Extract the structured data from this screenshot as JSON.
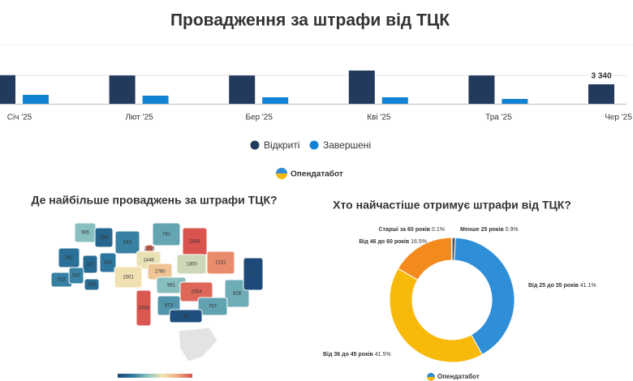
{
  "chart_data": [
    {
      "type": "bar",
      "title": "Провадження за штрафи від ТЦК",
      "categories": [
        "Січ '25",
        "Лют '25",
        "Бер '25",
        "Кві '25",
        "Тра '25",
        "Чер '25"
      ],
      "series": [
        {
          "name": "Відкриті",
          "color": "#223a5e",
          "values": [
            4900,
            4850,
            4850,
            5700,
            4850,
            3340
          ],
          "value_labels": [
            null,
            null,
            null,
            null,
            null,
            "3 340"
          ]
        },
        {
          "name": "Завершені",
          "color": "#1283d4",
          "values": [
            1530,
            1390,
            1110,
            1110,
            830,
            null
          ]
        }
      ],
      "source": "Опендатабот"
    },
    {
      "type": "map",
      "title": "Де найбільше проваджень за штрафи ТЦК?",
      "values": [
        965,
        286,
        543,
        781,
        2464,
        392,
        322,
        454,
        2356,
        1446,
        1760,
        1300,
        2151,
        532,
        547,
        350,
        1501,
        961,
        2354,
        828,
        2,
        2438,
        673,
        767,
        54
      ],
      "colors": [
        "#1d4a78",
        "#2e7aa0",
        "#8cc3c0",
        "#f1e4b4",
        "#f0ad7e",
        "#d9534f"
      ]
    },
    {
      "type": "pie",
      "title": "Хто найчастіше отримує штрафи від ТЦК?",
      "categories": [
        "Менше 25 років",
        "Від 25 до 35 років",
        "Від 36 до 45 років",
        "Від 46 до 60 років",
        "Старші за 60 років"
      ],
      "values": [
        0.9,
        41.1,
        41.5,
        16.5,
        0.1
      ],
      "value_labels": [
        "0.9%",
        "41.1%",
        "41.5%",
        "16.5%",
        "0.1%"
      ],
      "colors": [
        "#5a5a5a",
        "#2f8ed8",
        "#f7ba0b",
        "#f28a1e",
        "#444444"
      ],
      "donut": true,
      "source": "Опендатабот"
    }
  ]
}
